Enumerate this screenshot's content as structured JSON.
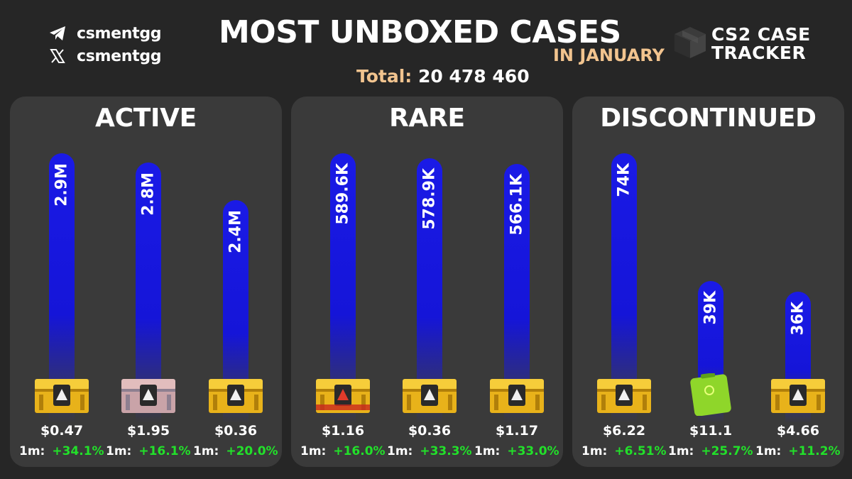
{
  "header": {
    "title": "MOST UNBOXED CASES",
    "subtitle": "IN JANUARY",
    "total_label": "Total:",
    "total_value": "20 478 460",
    "social": [
      {
        "icon": "telegram-icon",
        "handle": "csmentgg"
      },
      {
        "icon": "x-logo-icon",
        "handle": "csmentgg"
      }
    ],
    "brand_line1": "CS2 CASE",
    "brand_line2": "TRACKER"
  },
  "colors": {
    "background": "#262626",
    "panel": "#3a3a3a",
    "bar": "#1a1ae6",
    "accent": "#f2c48f",
    "positive": "#22e02a"
  },
  "chart_data": [
    {
      "type": "bar",
      "title": "ACTIVE",
      "categories": [
        "",
        "",
        ""
      ],
      "values": [
        2900000,
        2800000,
        2400000
      ],
      "value_labels": [
        "2.9M",
        "2.8M",
        "2.4M"
      ],
      "prices": [
        "$0.47",
        "$1.95",
        "$0.36"
      ],
      "change_prefix": "1m:",
      "changes": [
        "+34.1%",
        "+16.1%",
        "+20.0%"
      ],
      "case_icons": [
        "gold-case-icon",
        "pink-case-icon",
        "gold-case-icon"
      ],
      "ylim": [
        0,
        2900000
      ]
    },
    {
      "type": "bar",
      "title": "RARE",
      "categories": [
        "",
        "",
        ""
      ],
      "values": [
        589600,
        578900,
        566100
      ],
      "value_labels": [
        "589.6K",
        "578.9K",
        "566.1K"
      ],
      "prices": [
        "$1.16",
        "$0.36",
        "$1.17"
      ],
      "change_prefix": "1m:",
      "changes": [
        "+16.0%",
        "+33.3%",
        "+33.0%"
      ],
      "case_icons": [
        "gold-red-case-icon",
        "gold-case-icon",
        "gold-case-icon"
      ],
      "ylim": [
        0,
        589600
      ]
    },
    {
      "type": "bar",
      "title": "DISCONTINUED",
      "categories": [
        "",
        "",
        ""
      ],
      "values": [
        74000,
        39000,
        36000
      ],
      "value_labels": [
        "74K",
        "39K",
        "36K"
      ],
      "prices": [
        "$6.22",
        "$11.1",
        "$4.66"
      ],
      "change_prefix": "1m:",
      "changes": [
        "+6.51%",
        "+25.7%",
        "+11.2%"
      ],
      "case_icons": [
        "gold-case-icon",
        "green-case-icon",
        "gold-case-icon"
      ],
      "ylim": [
        0,
        74000
      ]
    }
  ]
}
